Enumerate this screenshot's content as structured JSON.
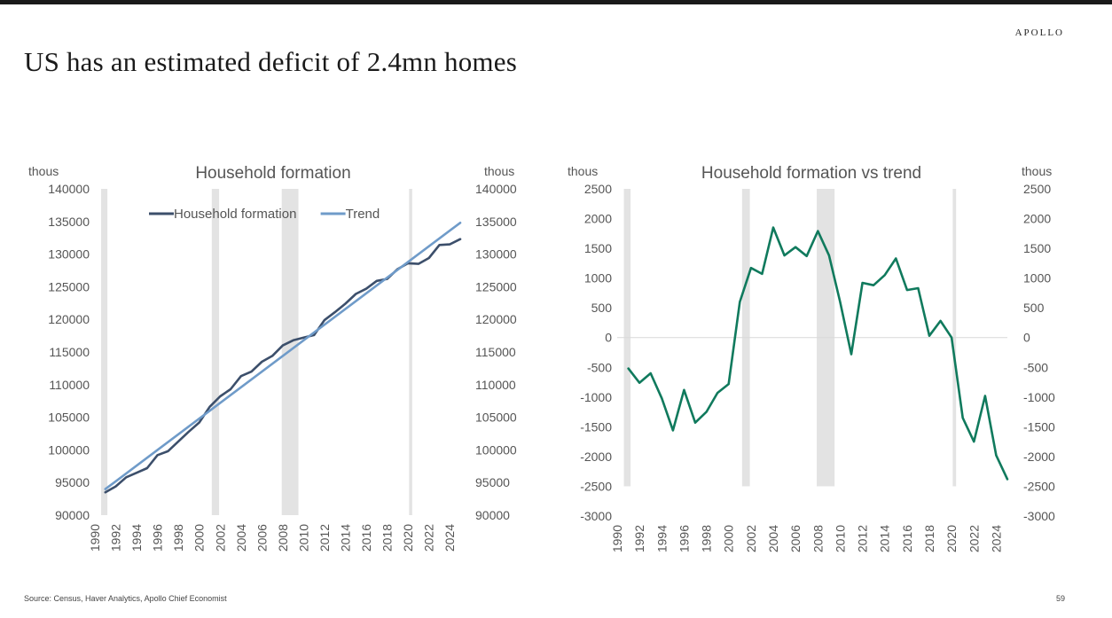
{
  "page": {
    "title": "US has an estimated deficit of 2.4mn homes",
    "brand": "APOLLO",
    "source": "Source: Census, Haver Analytics, Apollo Chief Economist",
    "page_number": "59"
  },
  "chart_data": [
    {
      "type": "line",
      "title": "Household formation",
      "y_unit_left": "thous",
      "y_unit_right": "thous",
      "ylim": [
        90000,
        140000
      ],
      "yticks": [
        90000,
        95000,
        100000,
        105000,
        110000,
        115000,
        120000,
        125000,
        130000,
        135000,
        140000
      ],
      "xlim": [
        1990,
        2025
      ],
      "xticks": [
        1990,
        1992,
        1994,
        1996,
        1998,
        2000,
        2002,
        2004,
        2006,
        2008,
        2010,
        2012,
        2014,
        2016,
        2018,
        2020,
        2022,
        2024
      ],
      "legend": "top",
      "grid": false,
      "colors": {
        "Household formation": "#3c4f6b",
        "Trend": "#6f9bc9",
        "shading": "#e3e3e3"
      },
      "recession_bands": [
        [
          1990.6,
          1991.2
        ],
        [
          2001.2,
          2001.9
        ],
        [
          2007.9,
          2009.5
        ],
        [
          2020.1,
          2020.4
        ]
      ],
      "series": [
        {
          "name": "Household formation",
          "x": [
            1991,
            1992,
            1993,
            1994,
            1995,
            1996,
            1997,
            1998,
            1999,
            2000,
            2001,
            2002,
            2003,
            2004,
            2005,
            2006,
            2007,
            2008,
            2009,
            2010,
            2011,
            2012,
            2013,
            2014,
            2015,
            2016,
            2017,
            2018,
            2019,
            2020,
            2021,
            2022,
            2023,
            2024,
            2025
          ],
          "y": [
            93500,
            94400,
            95800,
            96500,
            97200,
            99200,
            99800,
            101300,
            102800,
            104200,
            106600,
            108200,
            109300,
            111300,
            112000,
            113500,
            114400,
            116000,
            116800,
            117200,
            117600,
            119900,
            121100,
            122400,
            123900,
            124700,
            125900,
            126200,
            127700,
            128600,
            128500,
            129400,
            131400,
            131500,
            132300
          ]
        },
        {
          "name": "Trend",
          "x": [
            1991,
            2025
          ],
          "y": [
            94000,
            134800
          ]
        }
      ]
    },
    {
      "type": "line",
      "title": "Household formation vs trend",
      "y_unit_left": "thous",
      "y_unit_right": "thous",
      "ylim": [
        -3000,
        2500
      ],
      "yticks": [
        -3000,
        -2500,
        -2000,
        -1500,
        -1000,
        -500,
        0,
        500,
        1000,
        1500,
        2000,
        2500
      ],
      "xlim": [
        1990,
        2025
      ],
      "xticks": [
        1990,
        1992,
        1994,
        1996,
        1998,
        2000,
        2002,
        2004,
        2006,
        2008,
        2010,
        2012,
        2014,
        2016,
        2018,
        2020,
        2022,
        2024
      ],
      "legend": "none",
      "grid": false,
      "colors": {
        "deviation": "#107a5d",
        "shading": "#e3e3e3"
      },
      "recession_bands": [
        [
          1990.6,
          1991.2
        ],
        [
          2001.2,
          2001.9
        ],
        [
          2007.9,
          2009.5
        ],
        [
          2020.1,
          2020.4
        ]
      ],
      "series": [
        {
          "x": [
            1991,
            1992,
            1993,
            1994,
            1995,
            1996,
            1997,
            1998,
            1999,
            2000,
            2001,
            2002,
            2003,
            2004,
            2005,
            2006,
            2007,
            2008,
            2009,
            2010,
            2011,
            2012,
            2013,
            2014,
            2015,
            2016,
            2017,
            2018,
            2019,
            2020,
            2021,
            2022,
            2023,
            2024,
            2025
          ],
          "y": [
            -520,
            -760,
            -600,
            -1020,
            -1560,
            -880,
            -1430,
            -1250,
            -930,
            -780,
            600,
            1170,
            1070,
            1850,
            1380,
            1520,
            1370,
            1790,
            1380,
            600,
            -280,
            920,
            880,
            1050,
            1330,
            800,
            830,
            30,
            280,
            0,
            -1350,
            -1750,
            -980,
            -1980,
            -2380
          ]
        }
      ]
    }
  ]
}
